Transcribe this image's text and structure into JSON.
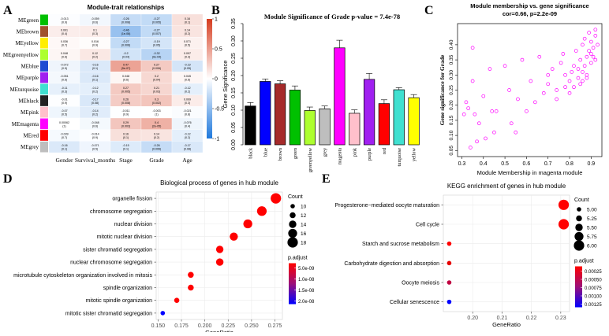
{
  "chart_data": [
    {
      "panel": "A",
      "type": "heatmap",
      "title": "Module-trait relationships",
      "rows": [
        "MEgreen",
        "MEbrown",
        "MEyellow",
        "MEgreenyellow",
        "MEblue",
        "MEpurple",
        "MEturquoise",
        "MEblack",
        "MEpink",
        "MEmagenta",
        "MEred",
        "MEgrey"
      ],
      "row_colors": [
        "#00c000",
        "#a0522d",
        "#ffee00",
        "#adff2f",
        "#1e4bd2",
        "#a020f0",
        "#40e0d0",
        "#222222",
        "#ffc0cb",
        "#ff00ff",
        "#ff0000",
        "#bebebe"
      ],
      "columns": [
        "Gender",
        "Survival_months",
        "Stage",
        "Grade",
        "Age"
      ],
      "values": [
        [
          -0.013,
          -0.059,
          -0.26,
          -0.27,
          0.16
        ],
        [
          0.091,
          0.1,
          -0.46,
          -0.27,
          0.14
        ],
        [
          0.036,
          0.016,
          -0.27,
          -0.19,
          0.071
        ],
        [
          0.048,
          0.12,
          -0.2,
          -0.32,
          0.097
        ],
        [
          -0.072,
          -0.16,
          0.47,
          0.27,
          -0.19
        ],
        [
          -0.051,
          -0.16,
          0.048,
          0.2,
          0.045
        ],
        [
          -0.11,
          -0.12,
          0.27,
          0.21,
          -0.12
        ],
        [
          -0.01,
          -0.17,
          0.26,
          0.3,
          0.099
        ],
        [
          -0.07,
          -0.14,
          -0.011,
          -0.003,
          -0.021
        ],
        [
          0.00062,
          -0.048,
          0.29,
          0.4,
          -0.076
        ],
        [
          -0.039,
          -0.014,
          0.16,
          0.14,
          -0.12
        ],
        [
          -0.16,
          -0.071,
          -0.15,
          -0.26,
          -0.17
        ]
      ],
      "pvalues": [
        [
          "(0.9)",
          "(0.6)",
          "(0.008)",
          "(0.005)",
          "(0.1)"
        ],
        [
          "(0.4)",
          "(0.3)",
          "(1e-06)",
          "(0.007)",
          "(0.2)"
        ],
        [
          "(0.7)",
          "(0.9)",
          "(0.006)",
          "(0.05)",
          "(0.5)"
        ],
        [
          "(0.6)",
          "(0.2)",
          "(0.04)",
          "(9e-04)",
          "(0.3)"
        ],
        [
          "(0.5)",
          "(0.1)",
          "(5e-07)",
          "(0.006)",
          "(0.05)"
        ],
        [
          "(0.6)",
          "(0.1)",
          "(0.6)",
          "(0.04)",
          "(0.6)"
        ],
        [
          "(0.3)",
          "(0.2)",
          "(0.005)",
          "(0.03)",
          "(0.2)"
        ],
        [
          "(0.9)",
          "(0.08)",
          "(0.008)",
          "(0.002)",
          "(0.3)"
        ],
        [
          "(0.5)",
          "(0.2)",
          "(0.9)",
          "(1)",
          "(0.8)"
        ],
        [
          "(1)",
          "(0.6)",
          "(0.003)",
          "(2e-05)",
          "(0.4)"
        ],
        [
          "(0.7)",
          "(0.9)",
          "(0.1)",
          "(0.2)",
          "(0.2)"
        ],
        [
          "(0.1)",
          "(0.5)",
          "(0.1)",
          "(0.006)",
          "(0.08)"
        ]
      ],
      "scale_ticks": [
        "1",
        "0.5",
        "0",
        "-0.5",
        "-1"
      ],
      "scale_range": [
        -1,
        1
      ]
    },
    {
      "panel": "B",
      "type": "bar",
      "title": "Module Significance of Grade p-value = 7.4e-78",
      "ylabel": "Gene Significance",
      "categories": [
        "black",
        "blue",
        "brown",
        "green",
        "greenyellow",
        "grey",
        "magenta",
        "pink",
        "purple",
        "red",
        "turquoise",
        "yellow"
      ],
      "colors": [
        "#000000",
        "#0000ff",
        "#a52a2a",
        "#00c000",
        "#adff2f",
        "#bebebe",
        "#ff00ff",
        "#ffc0cb",
        "#a020f0",
        "#ff0000",
        "#40e0d0",
        "#ffff00"
      ],
      "values": [
        0.112,
        0.183,
        0.176,
        0.158,
        0.099,
        0.104,
        0.28,
        0.091,
        0.189,
        0.119,
        0.159,
        0.136
      ],
      "errors": [
        0.01,
        0.007,
        0.009,
        0.012,
        0.01,
        0.008,
        0.022,
        0.01,
        0.017,
        0.011,
        0.006,
        0.009
      ],
      "ylim": [
        0,
        0.35
      ],
      "yticks": [
        "0.00",
        "0.05",
        "0.10",
        "0.15",
        "0.20",
        "0.25",
        "0.30",
        "0.35"
      ]
    },
    {
      "panel": "C",
      "type": "scatter",
      "title": "Module membership vs. gene significance",
      "subtitle": "cor=0.66, p=2.2e-09",
      "xlabel": "Module Membership in magenta module",
      "ylabel": "Gene significance for Grade",
      "xlim": [
        0.28,
        0.95
      ],
      "ylim": [
        0.03,
        0.47
      ],
      "xticks": [
        "0.3",
        "0.4",
        "0.5",
        "0.6",
        "0.7",
        "0.8",
        "0.9"
      ],
      "yticks": [
        "0.05",
        "0.10",
        "0.15",
        "0.20",
        "0.25",
        "0.30",
        "0.35",
        "0.40"
      ],
      "point_color": "#ff00ff",
      "x": [
        0.31,
        0.32,
        0.33,
        0.34,
        0.35,
        0.35,
        0.36,
        0.37,
        0.38,
        0.4,
        0.41,
        0.43,
        0.44,
        0.45,
        0.46,
        0.5,
        0.52,
        0.53,
        0.55,
        0.56,
        0.58,
        0.6,
        0.62,
        0.64,
        0.66,
        0.68,
        0.7,
        0.72,
        0.74,
        0.76,
        0.77,
        0.78,
        0.8,
        0.81,
        0.82,
        0.82,
        0.83,
        0.84,
        0.85,
        0.85,
        0.86,
        0.86,
        0.87,
        0.87,
        0.88,
        0.88,
        0.89,
        0.89,
        0.9,
        0.9,
        0.91,
        0.91,
        0.92,
        0.92,
        0.93,
        0.8,
        0.78,
        0.84,
        0.88,
        0.9,
        0.86,
        0.92,
        0.7,
        0.74
      ],
      "y": [
        0.17,
        0.21,
        0.19,
        0.06,
        0.39,
        0.28,
        0.17,
        0.08,
        0.14,
        0.23,
        0.09,
        0.32,
        0.18,
        0.11,
        0.18,
        0.33,
        0.25,
        0.14,
        0.11,
        0.22,
        0.35,
        0.18,
        0.28,
        0.21,
        0.36,
        0.24,
        0.27,
        0.32,
        0.25,
        0.34,
        0.37,
        0.3,
        0.28,
        0.31,
        0.33,
        0.26,
        0.38,
        0.29,
        0.35,
        0.27,
        0.4,
        0.31,
        0.42,
        0.33,
        0.36,
        0.29,
        0.44,
        0.38,
        0.34,
        0.41,
        0.39,
        0.36,
        0.43,
        0.45,
        0.4,
        0.24,
        0.26,
        0.32,
        0.3,
        0.37,
        0.28,
        0.35,
        0.3,
        0.22
      ]
    },
    {
      "panel": "D",
      "type": "scatter",
      "title": "Biological process of genes in hub module",
      "xlabel": "GeneRatio",
      "categories": [
        "organelle fission",
        "chromosome segregation",
        "nuclear division",
        "mitotic nuclear division",
        "sister chromatid segregation",
        "nuclear chromosome segregation",
        "microtubule cytoskeleton organization involved in mitosis",
        "spindle organization",
        "mitotic spindle organization",
        "mitotic sister chromatid segregation"
      ],
      "x": [
        0.276,
        0.261,
        0.246,
        0.231,
        0.216,
        0.216,
        0.185,
        0.185,
        0.17,
        0.155
      ],
      "count": [
        18,
        17,
        16,
        15,
        14,
        14,
        12,
        12,
        11,
        10
      ],
      "padjust": [
        2e-10,
        3e-10,
        5e-10,
        8e-10,
        1e-09,
        1e-09,
        2e-09,
        2e-09,
        4e-09,
        2.2e-08
      ],
      "point_colors": [
        "#ff0000",
        "#ff0000",
        "#ff0000",
        "#ff0000",
        "#ff0000",
        "#ff0000",
        "#ff0000",
        "#ff0000",
        "#ff0000",
        "#0000ff"
      ],
      "xlim": [
        0.148,
        0.283
      ],
      "xticks": [
        "0.150",
        "0.175",
        "0.200",
        "0.225",
        "0.250",
        "0.275"
      ],
      "size_legend": {
        "title": "Count",
        "labels": [
          "10",
          "12",
          "14",
          "16",
          "18"
        ]
      },
      "color_legend": {
        "title": "p.adjust",
        "labels": [
          "5.0e-09",
          "1.0e-08",
          "1.5e-08",
          "2.0e-08"
        ]
      }
    },
    {
      "panel": "E",
      "type": "scatter",
      "title": "KEGG enrichment of genes in hub module",
      "xlabel": "GeneRatio",
      "categories": [
        "Progesterone−mediated oocyte maturation",
        "Cell cycle",
        "Starch and sucrose metabolism",
        "Carbohydrate digestion and absorption",
        "Oocyte meiosis",
        "Cellular senescence"
      ],
      "x": [
        0.231,
        0.231,
        0.192,
        0.192,
        0.192,
        0.192
      ],
      "count": [
        6,
        6,
        5,
        5,
        5,
        5
      ],
      "padjust": [
        3e-05,
        5e-05,
        0.0004,
        0.0005,
        0.0008,
        0.0013
      ],
      "point_colors": [
        "#ff0000",
        "#ff0000",
        "#ff0000",
        "#e60000",
        "#c00040",
        "#0000ff"
      ],
      "xlim": [
        0.19,
        0.233
      ],
      "xticks": [
        "0.20",
        "0.21",
        "0.22",
        "0.23"
      ],
      "size_legend": {
        "title": "Count",
        "labels": [
          "5.00",
          "5.25",
          "5.50",
          "5.75",
          "6.00"
        ]
      },
      "color_legend": {
        "title": "p.adjust",
        "labels": [
          "0.00025",
          "0.00050",
          "0.00075",
          "0.00100",
          "0.00125"
        ]
      }
    }
  ],
  "panel_letters": [
    "A",
    "B",
    "C",
    "D",
    "E"
  ]
}
